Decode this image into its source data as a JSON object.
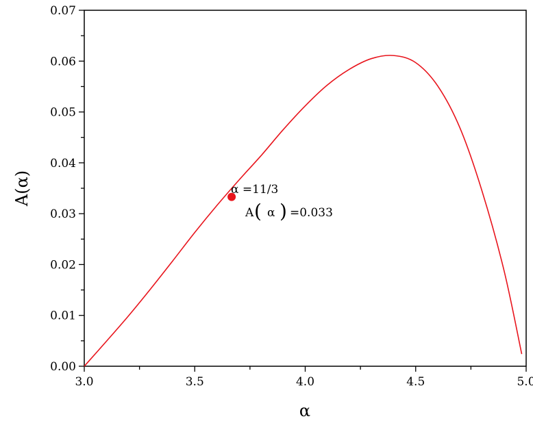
{
  "chart_data": {
    "type": "line",
    "title": "",
    "xlabel": "α",
    "ylabel": "A(α)",
    "xlim": [
      3.0,
      5.0
    ],
    "ylim": [
      0.0,
      0.07
    ],
    "grid": false,
    "x_ticks": [
      3.0,
      3.5,
      4.0,
      4.5,
      5.0
    ],
    "x_tick_labels": [
      "3.0",
      "3.5",
      "4.0",
      "4.5",
      "5.0"
    ],
    "y_ticks": [
      0.0,
      0.01,
      0.02,
      0.03,
      0.04,
      0.05,
      0.06,
      0.07
    ],
    "y_tick_labels": [
      "0.00",
      "0.01",
      "0.02",
      "0.03",
      "0.04",
      "0.05",
      "0.06",
      "0.07"
    ],
    "series": [
      {
        "color": "#e8141c",
        "x": [
          3.0,
          3.1,
          3.2,
          3.3,
          3.4,
          3.5,
          3.6,
          3.7,
          3.8,
          3.9,
          4.0,
          4.1,
          4.2,
          4.3,
          4.4,
          4.5,
          4.6,
          4.7,
          4.8,
          4.9,
          4.98
        ],
        "y": [
          0.0,
          0.0049,
          0.0099,
          0.0152,
          0.0207,
          0.0263,
          0.0316,
          0.0366,
          0.0414,
          0.0465,
          0.0512,
          0.0553,
          0.0584,
          0.0605,
          0.0611,
          0.0597,
          0.0551,
          0.0469,
          0.0345,
          0.0188,
          0.0024
        ]
      }
    ],
    "highlight_point": {
      "x": 3.667,
      "y": 0.0333,
      "color": "#e8141c",
      "label_line1": "α =11/3",
      "label_line2_prefix": "A",
      "label_line2_open": "(",
      "label_line2_var": "α",
      "label_line2_close": ")",
      "label_line2_suffix": "=0.033"
    }
  }
}
